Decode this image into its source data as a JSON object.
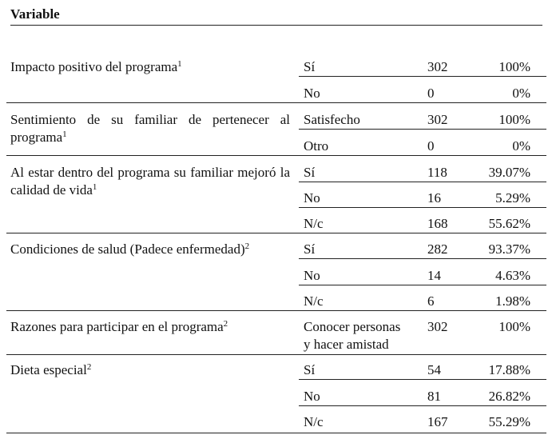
{
  "table": {
    "header": "Variable",
    "groups": [
      {
        "label": "Impacto positivo del programa",
        "sup": "1",
        "rows": [
          {
            "option": "Sí",
            "count": "302",
            "percent": "100%"
          },
          {
            "option": "No",
            "count": "0",
            "percent": "0%"
          }
        ]
      },
      {
        "label": "Sentimiento de su familiar de pertenecer al programa",
        "sup": "1",
        "rows": [
          {
            "option": "Satisfecho",
            "count": "302",
            "percent": "100%"
          },
          {
            "option": "Otro",
            "count": "0",
            "percent": "0%"
          }
        ]
      },
      {
        "label": "Al estar dentro del programa su familiar mejoró la calidad de vida",
        "sup": "1",
        "rows": [
          {
            "option": "Sí",
            "count": "118",
            "percent": "39.07%"
          },
          {
            "option": "No",
            "count": "16",
            "percent": "5.29%"
          },
          {
            "option": "N/c",
            "count": "168",
            "percent": "55.62%"
          }
        ]
      },
      {
        "label": "Condiciones de salud (Padece enfermedad)",
        "sup": "2",
        "rows": [
          {
            "option": "Sí",
            "count": "282",
            "percent": "93.37%"
          },
          {
            "option": "No",
            "count": "14",
            "percent": "4.63%"
          },
          {
            "option": "N/c",
            "count": "6",
            "percent": "1.98%"
          }
        ]
      },
      {
        "label": "Razones para participar en el programa",
        "sup": "2",
        "rows": [
          {
            "option_line1": "Conocer personas",
            "option_line2": "y hacer amistad",
            "count": "302",
            "percent": "100%"
          }
        ]
      },
      {
        "label": "Dieta especial",
        "sup": "2",
        "rows": [
          {
            "option": "Sí",
            "count": "54",
            "percent": "17.88%"
          },
          {
            "option": "No",
            "count": "81",
            "percent": "26.82%"
          },
          {
            "option": "N/c",
            "count": "167",
            "percent": "55.29%"
          }
        ]
      }
    ]
  }
}
